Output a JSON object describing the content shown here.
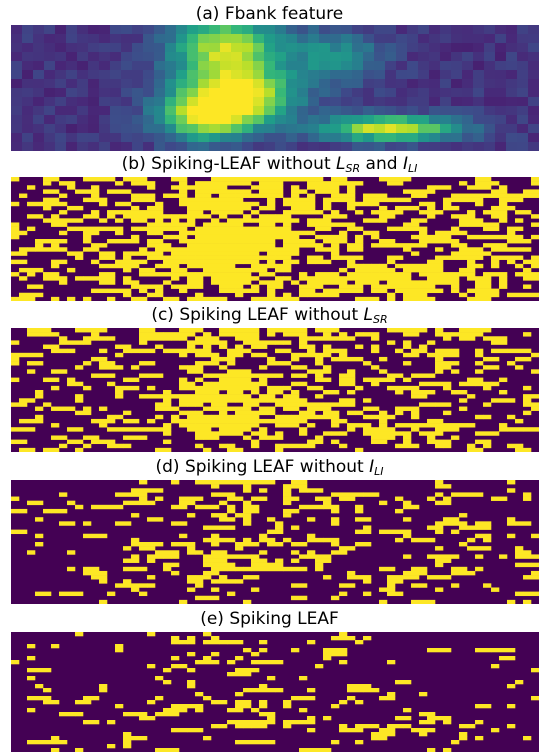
{
  "chart_data": [
    {
      "type": "heatmap",
      "title": "(a) Fbank feature",
      "colormap": "viridis",
      "content": "continuous filterbank energies; bright bands in the central region (around columns 14-22) and a horizontal bright band in the lower right (around columns 29-37, rows 11-12)"
    },
    {
      "type": "heatmap",
      "title_prefix": "(b) Spiking-LEAF without ",
      "title_sym1": "L",
      "title_sub1": "SR",
      "title_mid": " and ",
      "title_sym2": "I",
      "title_sub2": "LI",
      "colormap": "binary spikes (purple = 0, yellow = 1)",
      "spike_density": 0.42
    },
    {
      "type": "heatmap",
      "title_prefix": "(c) Spiking LEAF without ",
      "title_sym1": "L",
      "title_sub1": "SR",
      "colormap": "binary spikes (purple = 0, yellow = 1)",
      "spike_density": 0.3
    },
    {
      "type": "heatmap",
      "title_prefix": "(d) Spiking LEAF without ",
      "title_sym1": "I",
      "title_sub1": "LI",
      "colormap": "binary spikes (purple = 0, yellow = 1)",
      "spike_density": 0.16
    },
    {
      "type": "heatmap",
      "title": "(e) Spiking LEAF",
      "colormap": "binary spikes (purple = 0, yellow = 1)",
      "spike_density": 0.1
    }
  ],
  "colors": {
    "low": "#440154",
    "high": "#fde725"
  }
}
